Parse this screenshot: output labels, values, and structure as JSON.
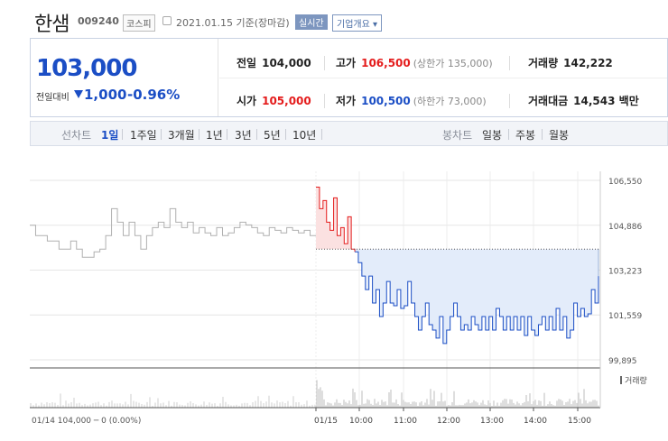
{
  "header": {
    "name": "한샘",
    "code": "009240",
    "market": "코스피",
    "date": "2021.01.15 기준(장마감)",
    "live_label": "실시간",
    "info_label": "기업개요"
  },
  "summary": {
    "price": "103,000",
    "diff_label": "전일대비",
    "change": "1,000",
    "change_pct": "-0.96%",
    "prev_label": "전일",
    "prev": "104,000",
    "high_label": "고가",
    "high": "106,500",
    "upper_limit": "(상한가 135,000)",
    "volume_label": "거래량",
    "volume": "142,222",
    "open_label": "시가",
    "open": "105,000",
    "low_label": "저가",
    "low": "100,500",
    "lower_limit": "(하한가 73,000)",
    "amount_label": "거래대금",
    "amount": "14,543 백만"
  },
  "tabs": {
    "line_label": "선차트",
    "periods": [
      "1일",
      "1주일",
      "3개월",
      "1년",
      "3년",
      "5년",
      "10년"
    ],
    "candle_label": "봉차트",
    "candles": [
      "일봉",
      "주봉",
      "월봉"
    ]
  },
  "colors": {
    "up": "#e41c1c",
    "down": "#1b4ec5",
    "prev_day": "#b0b0b0",
    "fill_down": "#e3ecfa",
    "fill_up": "#fbe1e1"
  },
  "chart_data": {
    "type": "line",
    "y_ticks": [
      "106,550",
      "104,886",
      "103,223",
      "101,559",
      "99,895"
    ],
    "y_tick_values": [
      106550,
      104886,
      103223,
      101559,
      99895
    ],
    "ylim": [
      99895,
      106550
    ],
    "reference_price": 104000,
    "x_labels": [
      "01/15",
      "10:00",
      "11:00",
      "12:00",
      "13:00",
      "14:00",
      "15:00"
    ],
    "volume_label": "거래량",
    "prev_day_label": "01/14 104,000 ─ 0 (0.00%)",
    "series": [
      {
        "values": [
          104886,
          104500,
          104500,
          104300,
          104300,
          104000,
          104000,
          104300,
          104000,
          103700,
          103700,
          103900,
          104000,
          104500,
          105500,
          105000,
          104500,
          105000,
          104500,
          104000,
          104500,
          104800,
          105000,
          104800,
          105500,
          105000,
          104800,
          105000,
          104600,
          104800,
          104600,
          104500,
          104800,
          104500,
          104600,
          104800,
          105000,
          104900,
          104800,
          104600,
          104500,
          104800,
          104700,
          104600,
          104800,
          104700,
          104600,
          104700,
          104500,
          104500
        ]
      },
      {
        "values": [
          106300,
          105500,
          105800,
          105000,
          104700,
          105900,
          104500,
          104800,
          104200,
          105200,
          104000,
          103900,
          103500,
          103000,
          102500,
          103000,
          102000,
          102500,
          101500,
          102000,
          102800,
          102000,
          101900,
          102500,
          101800,
          101900,
          102800,
          102000,
          101500,
          101000,
          101500,
          102000,
          101200,
          101000,
          100700,
          101500,
          100500,
          101000,
          101500,
          102000,
          101500,
          101000,
          101200,
          101000,
          101500,
          101200,
          101000,
          101500,
          101000,
          101500,
          101000,
          101800,
          101500,
          101000,
          101500,
          101000,
          101500,
          101000,
          101500,
          100800,
          101500,
          101000,
          100800,
          101200,
          101500,
          101000,
          101500,
          101000,
          101800,
          101000,
          101500,
          100700,
          101000,
          102000,
          101500,
          101800,
          101500,
          101600,
          102500,
          102000,
          103000
        ]
      }
    ]
  }
}
